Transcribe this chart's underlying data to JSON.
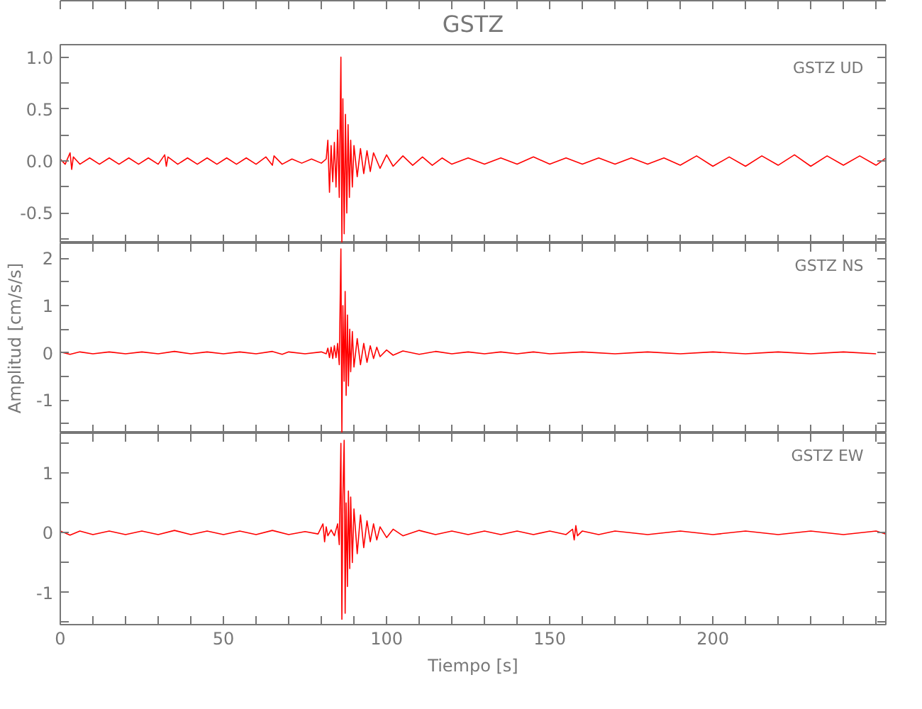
{
  "chart_data": [
    {
      "type": "line",
      "title": "GSTZ",
      "annotations": [
        "GSTZ   UD"
      ],
      "tick_labels": "y",
      "grid": false,
      "marker": "none",
      "line_style": "solid",
      "xlim": [
        0,
        253
      ],
      "xticks": [
        {
          "value": 0,
          "label": null
        },
        {
          "value": 10,
          "label": null
        },
        {
          "value": 20,
          "label": null
        },
        {
          "value": 30,
          "label": null
        },
        {
          "value": 40,
          "label": null
        },
        {
          "value": 50,
          "label": null
        },
        {
          "value": 60,
          "label": null
        },
        {
          "value": 70,
          "label": null
        },
        {
          "value": 80,
          "label": null
        },
        {
          "value": 90,
          "label": null
        },
        {
          "value": 100,
          "label": null
        },
        {
          "value": 110,
          "label": null
        },
        {
          "value": 120,
          "label": null
        },
        {
          "value": 130,
          "label": null
        },
        {
          "value": 140,
          "label": null
        },
        {
          "value": 150,
          "label": null
        },
        {
          "value": 160,
          "label": null
        },
        {
          "value": 170,
          "label": null
        },
        {
          "value": 180,
          "label": null
        },
        {
          "value": 190,
          "label": null
        },
        {
          "value": 200,
          "label": null
        },
        {
          "value": 210,
          "label": null
        },
        {
          "value": 220,
          "label": null
        },
        {
          "value": 230,
          "label": null
        },
        {
          "value": 240,
          "label": null
        },
        {
          "value": 250,
          "label": null
        }
      ],
      "ylim": [
        -0.79,
        1.12
      ],
      "yticks": [
        {
          "value": -0.75,
          "label": null
        },
        {
          "value": -0.5,
          "label": "-0.5"
        },
        {
          "value": -0.25,
          "label": null
        },
        {
          "value": 0,
          "label": "0.0"
        },
        {
          "value": 0.25,
          "label": null
        },
        {
          "value": 0.5,
          "label": "0.5"
        },
        {
          "value": 0.75,
          "label": null
        },
        {
          "value": 1,
          "label": "1.0"
        }
      ],
      "series": [
        {
          "color": "#ff0000",
          "x": [
            0,
            1.5,
            3,
            3.5,
            4,
            6,
            9,
            12,
            15,
            18,
            21,
            24,
            27,
            30,
            32,
            32.5,
            33,
            36,
            39,
            42,
            45,
            48,
            51,
            54,
            57,
            60,
            63,
            65,
            65.5,
            68,
            71,
            74,
            77,
            80,
            81.5,
            82,
            82.5,
            83,
            83.5,
            84,
            84.5,
            85,
            85.5,
            86,
            86.3,
            86.6,
            87,
            87.4,
            87.8,
            88.2,
            88.6,
            89,
            89.5,
            90,
            91,
            92,
            93,
            94,
            95,
            96,
            98,
            100,
            102,
            105,
            108,
            111,
            114,
            117,
            120,
            125,
            130,
            135,
            140,
            145,
            150,
            155,
            160,
            165,
            170,
            175,
            180,
            185,
            190,
            195,
            200,
            205,
            210,
            215,
            220,
            225,
            230,
            235,
            240,
            245,
            250,
            253
          ],
          "values": [
            0.02,
            -0.03,
            0.08,
            -0.08,
            0.04,
            -0.03,
            0.03,
            -0.03,
            0.03,
            -0.03,
            0.03,
            -0.03,
            0.03,
            -0.03,
            0.06,
            -0.05,
            0.04,
            -0.03,
            0.03,
            -0.03,
            0.03,
            -0.03,
            0.03,
            -0.03,
            0.03,
            -0.03,
            0.04,
            -0.04,
            0.05,
            -0.03,
            0.02,
            -0.02,
            0.02,
            -0.02,
            0.02,
            0.2,
            -0.3,
            0.15,
            -0.2,
            0.18,
            -0.25,
            0.3,
            -0.35,
            1.0,
            -0.78,
            0.6,
            -0.7,
            0.45,
            -0.5,
            0.35,
            -0.35,
            0.2,
            -0.25,
            0.15,
            -0.15,
            0.12,
            -0.12,
            0.1,
            -0.1,
            0.08,
            -0.07,
            0.06,
            -0.05,
            0.05,
            -0.04,
            0.04,
            -0.04,
            0.03,
            -0.03,
            0.03,
            -0.03,
            0.03,
            -0.03,
            0.04,
            -0.03,
            0.03,
            -0.03,
            0.03,
            -0.03,
            0.03,
            -0.03,
            0.03,
            -0.04,
            0.05,
            -0.05,
            0.04,
            -0.05,
            0.05,
            -0.04,
            0.06,
            -0.05,
            0.05,
            -0.04,
            0.05,
            -0.04,
            0.03
          ]
        }
      ]
    },
    {
      "type": "line",
      "ylabel": "Amplitud [cm/s/s]",
      "annotations": [
        "GSTZ   NS"
      ],
      "tick_labels": "y",
      "grid": false,
      "marker": "none",
      "line_style": "solid",
      "xlim": [
        0,
        253
      ],
      "xticks": [
        {
          "value": 0,
          "label": null
        },
        {
          "value": 10,
          "label": null
        },
        {
          "value": 20,
          "label": null
        },
        {
          "value": 30,
          "label": null
        },
        {
          "value": 40,
          "label": null
        },
        {
          "value": 50,
          "label": null
        },
        {
          "value": 60,
          "label": null
        },
        {
          "value": 70,
          "label": null
        },
        {
          "value": 80,
          "label": null
        },
        {
          "value": 90,
          "label": null
        },
        {
          "value": 100,
          "label": null
        },
        {
          "value": 110,
          "label": null
        },
        {
          "value": 120,
          "label": null
        },
        {
          "value": 130,
          "label": null
        },
        {
          "value": 140,
          "label": null
        },
        {
          "value": 150,
          "label": null
        },
        {
          "value": 160,
          "label": null
        },
        {
          "value": 170,
          "label": null
        },
        {
          "value": 180,
          "label": null
        },
        {
          "value": 190,
          "label": null
        },
        {
          "value": 200,
          "label": null
        },
        {
          "value": 210,
          "label": null
        },
        {
          "value": 220,
          "label": null
        },
        {
          "value": 230,
          "label": null
        },
        {
          "value": 240,
          "label": null
        },
        {
          "value": 250,
          "label": null
        }
      ],
      "ylim": [
        -1.7,
        2.32
      ],
      "yticks": [
        {
          "value": -1.5,
          "label": null
        },
        -1,
        {
          "value": -0.5,
          "label": null
        },
        0,
        {
          "value": 0.5,
          "label": null
        },
        1,
        {
          "value": 1.5,
          "label": null
        },
        2
      ],
      "series": [
        {
          "color": "#ff0000",
          "x": [
            0,
            3,
            6,
            10,
            15,
            20,
            25,
            30,
            35,
            40,
            45,
            50,
            55,
            60,
            65,
            68,
            70,
            75,
            80,
            81.5,
            82,
            82.5,
            83,
            83.5,
            84,
            84.5,
            85,
            85.5,
            86,
            86.3,
            86.6,
            87,
            87.3,
            87.6,
            88,
            88.3,
            88.7,
            89,
            89.5,
            90,
            91,
            92,
            93,
            94,
            95,
            96,
            97,
            98,
            100,
            102,
            105,
            110,
            115,
            120,
            125,
            130,
            135,
            140,
            145,
            150,
            160,
            170,
            180,
            190,
            200,
            210,
            220,
            230,
            240,
            250
          ],
          "values": [
            0.02,
            -0.03,
            0.02,
            -0.02,
            0.02,
            -0.02,
            0.02,
            -0.02,
            0.03,
            -0.02,
            0.02,
            -0.02,
            0.02,
            -0.02,
            0.03,
            -0.03,
            0.02,
            -0.02,
            0.02,
            -0.02,
            0.1,
            -0.1,
            0.12,
            -0.12,
            0.15,
            -0.1,
            0.2,
            -0.25,
            2.2,
            -1.7,
            1.0,
            -0.6,
            1.3,
            -0.9,
            0.8,
            -0.7,
            0.5,
            -0.4,
            0.45,
            -0.3,
            0.3,
            -0.25,
            0.2,
            -0.2,
            0.15,
            -0.12,
            0.12,
            -0.08,
            0.06,
            -0.05,
            0.04,
            -0.03,
            0.03,
            -0.02,
            0.02,
            -0.02,
            0.02,
            -0.02,
            0.02,
            -0.02,
            0.02,
            -0.02,
            0.02,
            -0.02,
            0.02,
            -0.02,
            0.02,
            -0.02,
            0.02,
            -0.02
          ]
        }
      ]
    },
    {
      "type": "line",
      "xlabel": "Tiempo [s]",
      "annotations": [
        "GSTZ   EW"
      ],
      "grid": false,
      "marker": "none",
      "line_style": "solid",
      "xlim": [
        0,
        253
      ],
      "xticks": [
        0,
        {
          "value": 10,
          "label": null
        },
        {
          "value": 20,
          "label": null
        },
        {
          "value": 30,
          "label": null
        },
        {
          "value": 40,
          "label": null
        },
        50,
        {
          "value": 60,
          "label": null
        },
        {
          "value": 70,
          "label": null
        },
        {
          "value": 80,
          "label": null
        },
        {
          "value": 90,
          "label": null
        },
        100,
        {
          "value": 110,
          "label": null
        },
        {
          "value": 120,
          "label": null
        },
        {
          "value": 130,
          "label": null
        },
        {
          "value": 140,
          "label": null
        },
        150,
        {
          "value": 160,
          "label": null
        },
        {
          "value": 170,
          "label": null
        },
        {
          "value": 180,
          "label": null
        },
        {
          "value": 190,
          "label": null
        },
        200,
        {
          "value": 210,
          "label": null
        },
        {
          "value": 220,
          "label": null
        },
        {
          "value": 230,
          "label": null
        },
        {
          "value": 240,
          "label": null
        },
        {
          "value": 250,
          "label": null
        }
      ],
      "ylim": [
        -1.54,
        1.67
      ],
      "yticks": [
        {
          "value": -1.5,
          "label": null
        },
        -1,
        {
          "value": -0.5,
          "label": null
        },
        0,
        {
          "value": 0.5,
          "label": null
        },
        1,
        {
          "value": 1.5,
          "label": null
        }
      ],
      "series": [
        {
          "color": "#ff0000",
          "x": [
            0,
            3,
            6,
            10,
            15,
            20,
            25,
            30,
            35,
            40,
            45,
            50,
            55,
            60,
            65,
            70,
            75,
            79,
            80.5,
            81,
            81.5,
            82,
            83,
            84,
            85,
            85.5,
            86,
            86.3,
            86.6,
            87,
            87.3,
            87.6,
            88,
            88.3,
            88.7,
            89,
            89.5,
            90,
            91,
            92,
            93,
            94,
            95,
            96,
            97,
            98,
            100,
            102,
            105,
            110,
            115,
            120,
            125,
            130,
            135,
            140,
            145,
            150,
            155,
            157,
            157.5,
            158,
            158.5,
            160,
            165,
            170,
            180,
            190,
            200,
            210,
            220,
            230,
            240,
            250,
            253
          ],
          "values": [
            0.03,
            -0.04,
            0.03,
            -0.03,
            0.03,
            -0.03,
            0.03,
            -0.03,
            0.04,
            -0.03,
            0.03,
            -0.03,
            0.03,
            -0.03,
            0.04,
            -0.03,
            0.02,
            -0.02,
            0.15,
            -0.15,
            0.1,
            -0.05,
            0.05,
            -0.05,
            0.15,
            -0.2,
            1.5,
            -1.45,
            0.6,
            1.55,
            -1.35,
            0.5,
            -0.9,
            0.7,
            -0.6,
            0.6,
            -0.5,
            0.4,
            -0.35,
            0.3,
            -0.25,
            0.2,
            -0.15,
            0.15,
            -0.12,
            0.1,
            -0.08,
            0.06,
            -0.05,
            0.04,
            -0.03,
            0.03,
            -0.03,
            0.03,
            -0.03,
            0.03,
            -0.03,
            0.03,
            -0.03,
            0.06,
            -0.12,
            0.12,
            -0.05,
            0.03,
            -0.03,
            0.03,
            -0.03,
            0.03,
            -0.03,
            0.03,
            -0.03,
            0.03,
            -0.03,
            0.03,
            -0.02
          ]
        }
      ]
    }
  ]
}
